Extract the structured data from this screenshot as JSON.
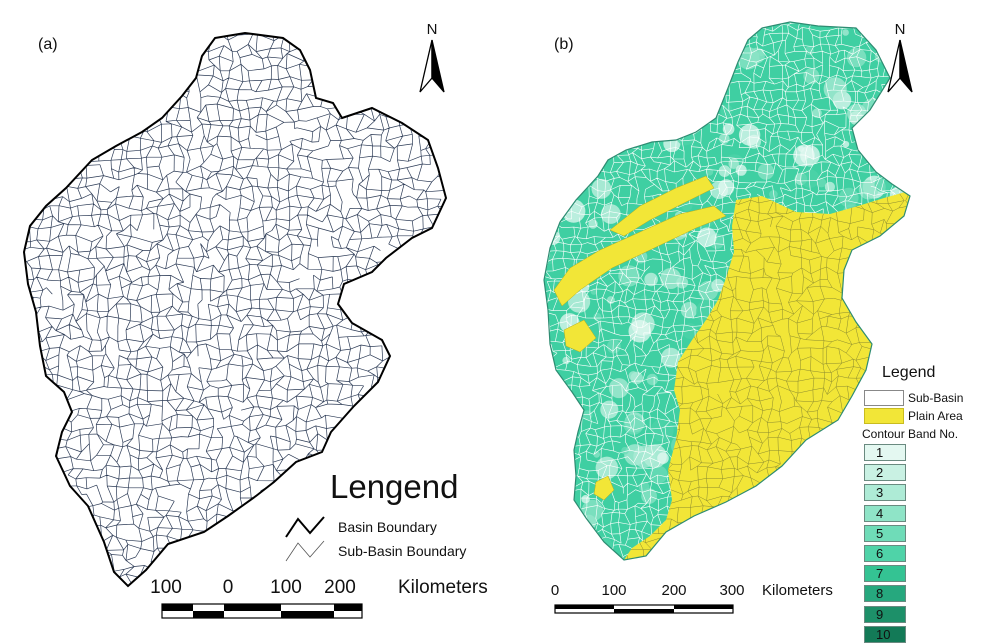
{
  "panel_a": {
    "label": "(a)",
    "north_label": "N",
    "legend": {
      "title": "Lengend",
      "items": [
        {
          "label": "Basin Boundary"
        },
        {
          "label": "Sub-Basin Boundary"
        }
      ]
    },
    "scale_bar": {
      "ticks": [
        "100",
        "0",
        "100",
        "200"
      ],
      "unit": "Kilometers"
    },
    "colors": {
      "basin_boundary": "#000000",
      "sub_basin_boundary": "#2b3a55"
    }
  },
  "panel_b": {
    "label": "(b)",
    "north_label": "N",
    "legend": {
      "title": "Legend",
      "sub_basin": "Sub-Basin",
      "plain_area": "Plain Area",
      "band_header": "Contour Band No.",
      "bands": [
        "1",
        "2",
        "3",
        "4",
        "5",
        "6",
        "7",
        "8",
        "9",
        "10"
      ]
    },
    "scale_bar": {
      "ticks": [
        "0",
        "100",
        "200",
        "300"
      ],
      "unit": "Kilometers"
    },
    "colors": {
      "plain_area": "#f2e637",
      "mountain": "#3fcfa2",
      "bands": [
        "#e4f8f1",
        "#c9f1e3",
        "#aeebd6",
        "#8fe4c7",
        "#6fdcb8",
        "#4fd3a8",
        "#34c393",
        "#26a87e",
        "#1d9069",
        "#137a57"
      ]
    }
  }
}
